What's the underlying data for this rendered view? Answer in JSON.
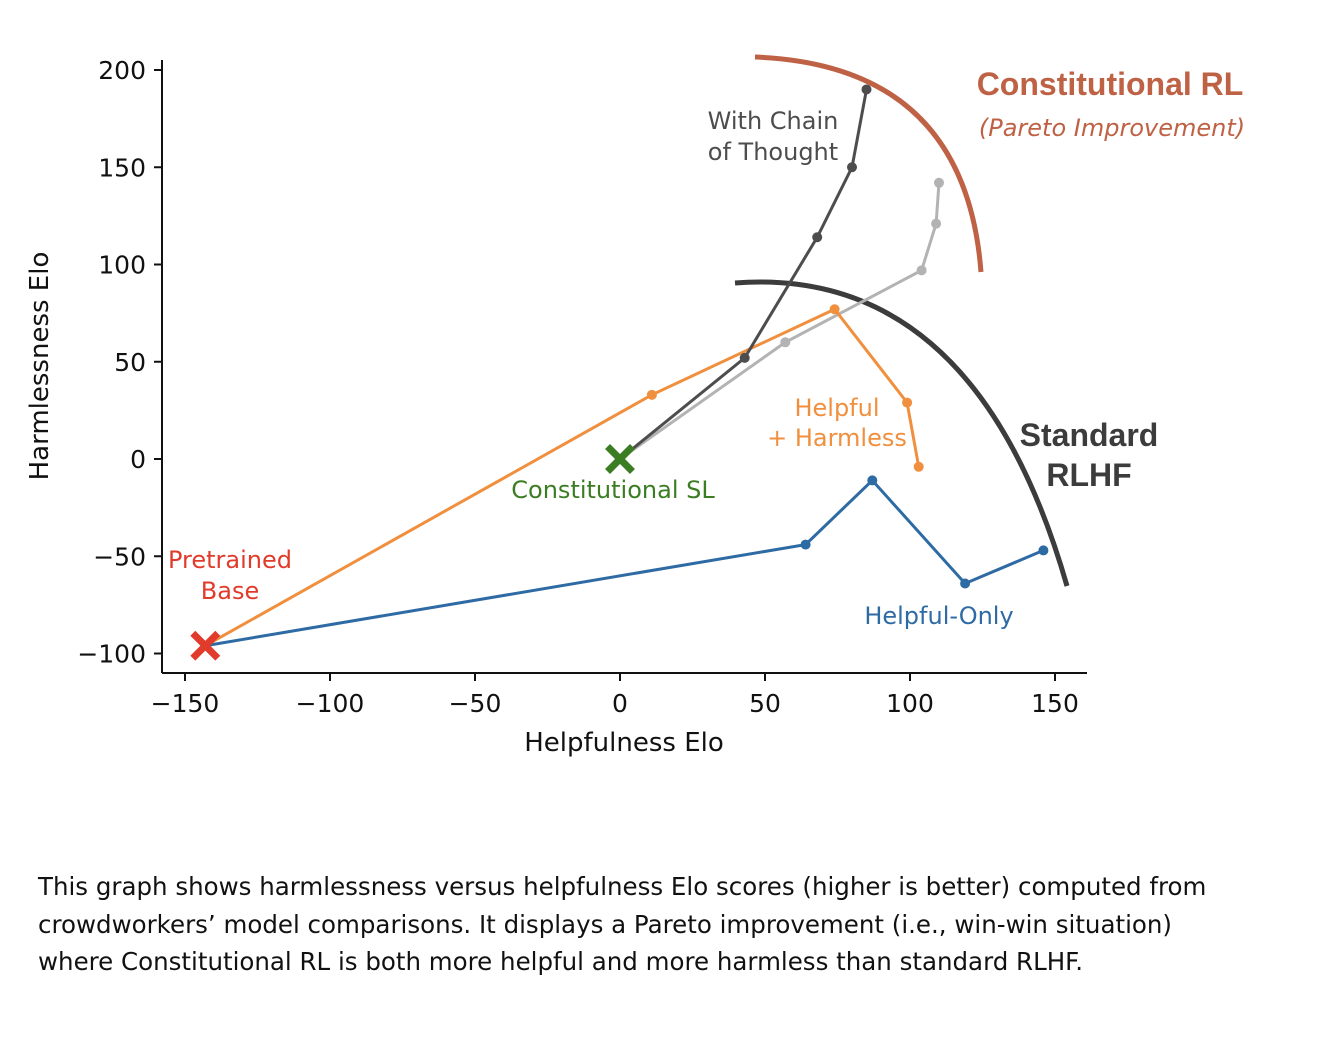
{
  "chart_data": {
    "type": "line",
    "xlabel": "Helpfulness Elo",
    "ylabel": "Harmlessness Elo",
    "xlim": [
      -160,
      160
    ],
    "ylim": [
      -110,
      205
    ],
    "xticks": [
      -150,
      -100,
      -50,
      0,
      50,
      100,
      150
    ],
    "yticks": [
      -100,
      -50,
      0,
      50,
      100,
      150,
      200
    ],
    "xtick_labels": [
      "−150",
      "−100",
      "−50",
      "0",
      "50",
      "100",
      "150"
    ],
    "ytick_labels": [
      "−100",
      "−50",
      "0",
      "50",
      "100",
      "150",
      "200"
    ],
    "grid": false,
    "series": [
      {
        "name": "Helpful-Only",
        "color": "#2e6aa3",
        "points": [
          [
            -143,
            -96
          ],
          [
            64,
            -44
          ],
          [
            87,
            -11
          ],
          [
            119,
            -64
          ],
          [
            146,
            -47
          ]
        ]
      },
      {
        "name": "Helpful\n+ Harmless",
        "color": "#f08f3e",
        "points": [
          [
            -143,
            -96
          ],
          [
            11,
            33
          ],
          [
            74,
            77
          ],
          [
            99,
            29
          ],
          [
            103,
            -4
          ]
        ]
      },
      {
        "name": "With Chain\nof Thought",
        "color": "#4d4d4d",
        "points": [
          [
            0,
            0
          ],
          [
            43,
            52
          ],
          [
            68,
            114
          ],
          [
            80,
            150
          ],
          [
            85,
            190
          ]
        ]
      },
      {
        "name": "",
        "color": "#b3b3b3",
        "points": [
          [
            0,
            0
          ],
          [
            57,
            60
          ],
          [
            104,
            97
          ],
          [
            109,
            121
          ],
          [
            110,
            142
          ]
        ]
      }
    ],
    "markers": [
      {
        "label": "Pretrained\nBase",
        "x": -143,
        "y": -96,
        "color": "#e03b2b"
      },
      {
        "label": "Constitutional SL",
        "x": 0,
        "y": 0,
        "color": "#3b7d23"
      }
    ],
    "frontiers": [
      {
        "label": "Constitutional RL",
        "sublabel": "(Pareto Improvement)",
        "color": "#bf6145"
      },
      {
        "label": "Standard\nRLHF",
        "color": "#3c3c3c"
      }
    ]
  },
  "annotations": {
    "pretrained_line1": "Pretrained",
    "pretrained_line2": "Base",
    "constitutional_sl": "Constitutional SL",
    "cot_line1": "With Chain",
    "cot_line2": "of Thought",
    "hh_line1": "Helpful",
    "hh_line2": "+ Harmless",
    "helpful_only": "Helpful-Only",
    "const_rl": "Constitutional RL",
    "pareto": "(Pareto Improvement)",
    "std_line1": "Standard",
    "std_line2": "RLHF"
  },
  "caption": "This graph shows harmlessness versus helpfulness Elo scores (higher is better) computed from crowdworkers’ model comparisons. It displays a Pareto improvement (i.e., win-win situation) where Constitutional RL is both more helpful and more harmless than standard RLHF."
}
